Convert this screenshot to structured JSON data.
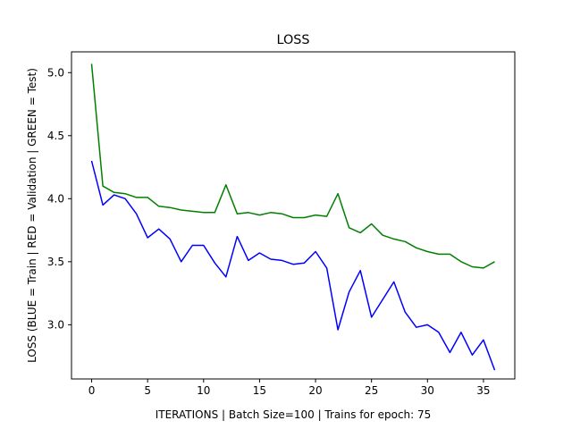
{
  "chart_data": {
    "type": "line",
    "title": "LOSS",
    "xlabel": "ITERATIONS | Batch Size=100 | Trains for epoch: 75",
    "ylabel": "LOSS (BLUE = Train | RED = Validation | GREEN = Test)",
    "xlim": [
      -1.8,
      37.8
    ],
    "ylim": [
      2.57,
      5.165
    ],
    "xticks": [
      0,
      5,
      10,
      15,
      20,
      25,
      30,
      35
    ],
    "yticks": [
      3.0,
      3.5,
      4.0,
      4.5,
      5.0
    ],
    "xtick_labels": [
      "0",
      "5",
      "10",
      "15",
      "20",
      "25",
      "30",
      "35"
    ],
    "ytick_labels": [
      "3.0",
      "3.5",
      "4.0",
      "4.5",
      "5.0"
    ],
    "grid": false,
    "x": [
      0,
      1,
      2,
      3,
      4,
      5,
      6,
      7,
      8,
      9,
      10,
      11,
      12,
      13,
      14,
      15,
      16,
      17,
      18,
      19,
      20,
      21,
      22,
      23,
      24,
      25,
      26,
      27,
      28,
      29,
      30,
      31,
      32,
      33,
      34,
      35,
      36
    ],
    "series": [
      {
        "color": "#0000ff",
        "values": [
          4.3,
          3.95,
          4.03,
          4.0,
          3.88,
          3.69,
          3.76,
          3.68,
          3.5,
          3.63,
          3.63,
          3.49,
          3.38,
          3.7,
          3.51,
          3.57,
          3.52,
          3.51,
          3.48,
          3.49,
          3.58,
          3.45,
          2.96,
          3.26,
          3.43,
          3.06,
          3.2,
          3.34,
          3.1,
          2.98,
          3.0,
          2.94,
          2.78,
          2.94,
          2.76,
          2.88,
          2.64
        ]
      },
      {
        "color": "#008000",
        "values": [
          5.07,
          4.1,
          4.05,
          4.04,
          4.01,
          4.01,
          3.94,
          3.93,
          3.91,
          3.9,
          3.89,
          3.89,
          4.11,
          3.88,
          3.89,
          3.87,
          3.89,
          3.88,
          3.85,
          3.85,
          3.87,
          3.86,
          4.04,
          3.77,
          3.73,
          3.8,
          3.71,
          3.68,
          3.66,
          3.61,
          3.58,
          3.56,
          3.56,
          3.5,
          3.46,
          3.45,
          3.5
        ]
      }
    ]
  }
}
